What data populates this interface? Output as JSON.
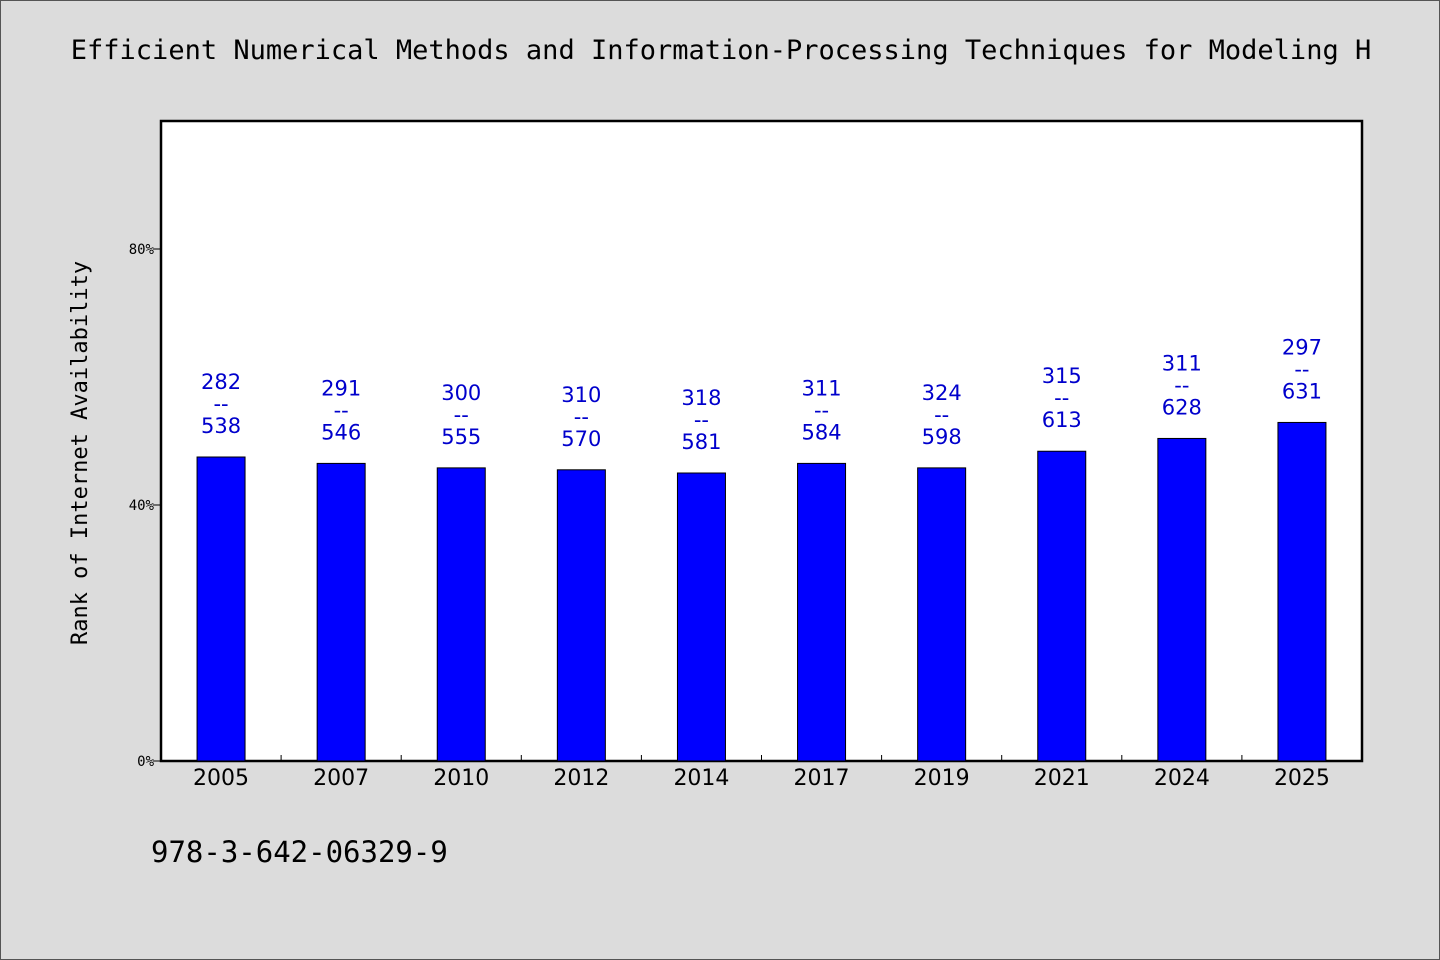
{
  "chart_data": {
    "type": "bar",
    "title": "Efficient Numerical Methods and Information-Processing Techniques for Modeling H",
    "xlabel": "",
    "ylabel": "Rank of Internet Availability",
    "ylim": [
      0,
      100
    ],
    "yticks": [
      {
        "value": 0,
        "label": "0%"
      },
      {
        "value": 40,
        "label": "40%"
      },
      {
        "value": 80,
        "label": "80%"
      }
    ],
    "categories": [
      "2005",
      "2007",
      "2010",
      "2012",
      "2014",
      "2017",
      "2019",
      "2021",
      "2024",
      "2025"
    ],
    "values": [
      47.5,
      46.5,
      45.8,
      45.5,
      45.0,
      46.5,
      45.8,
      48.4,
      50.4,
      52.9
    ],
    "annotations": [
      {
        "top": "282",
        "sep": "--",
        "bottom": "538"
      },
      {
        "top": "291",
        "sep": "--",
        "bottom": "546"
      },
      {
        "top": "300",
        "sep": "--",
        "bottom": "555"
      },
      {
        "top": "310",
        "sep": "--",
        "bottom": "570"
      },
      {
        "top": "318",
        "sep": "--",
        "bottom": "581"
      },
      {
        "top": "311",
        "sep": "--",
        "bottom": "584"
      },
      {
        "top": "324",
        "sep": "--",
        "bottom": "598"
      },
      {
        "top": "315",
        "sep": "--",
        "bottom": "613"
      },
      {
        "top": "311",
        "sep": "--",
        "bottom": "628"
      },
      {
        "top": "297",
        "sep": "--",
        "bottom": "631"
      }
    ],
    "grid": false,
    "bar_color": "#0000ff",
    "label_color": "#0000cc",
    "plot_background": "#ffffff",
    "page_background": "#dcdcdc"
  },
  "footer": {
    "isbn": "978-3-642-06329-9"
  }
}
